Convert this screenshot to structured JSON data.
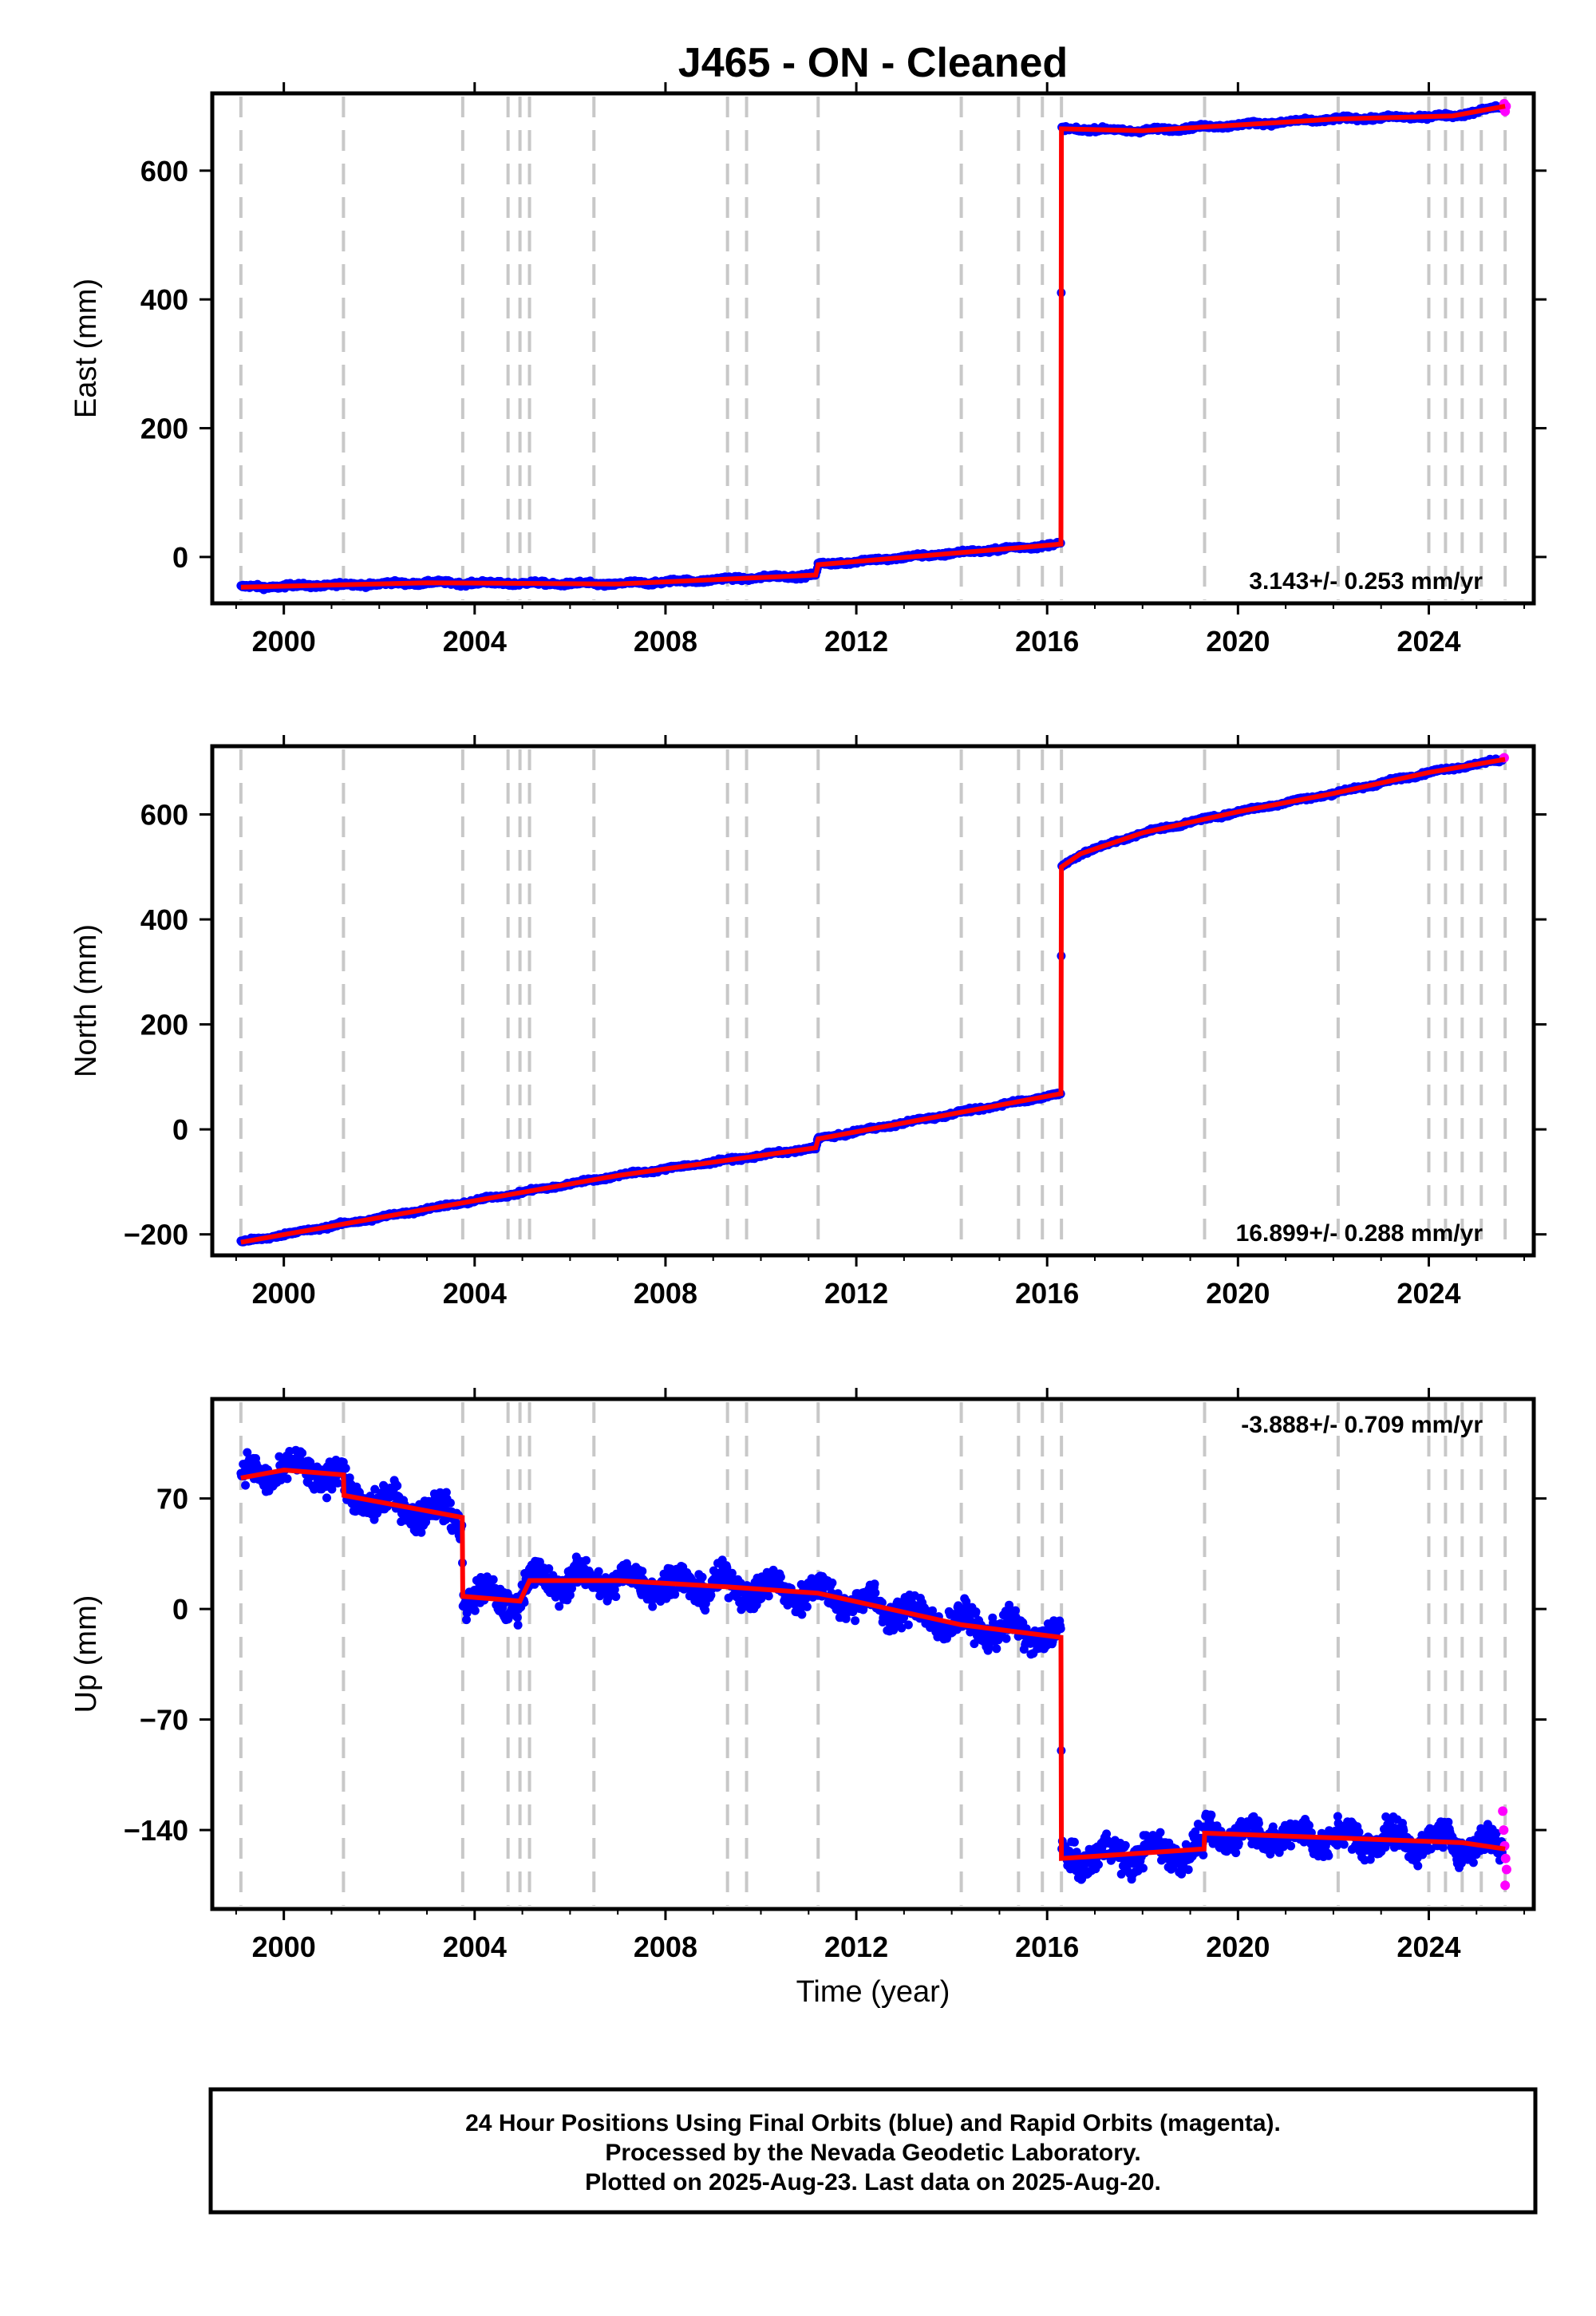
{
  "title": "J465  - ON - Cleaned",
  "footer": {
    "line1": "24 Hour Positions Using Final Orbits (blue) and Rapid Orbits (magenta).",
    "line2": "Processed by the Nevada Geodetic Laboratory.",
    "line3": "Plotted on 2025-Aug-23. Last data on 2025-Aug-20."
  },
  "colors": {
    "final_orbits": "#0000ff",
    "rapid_orbits": "#ff00ff",
    "model_fit": "#ff0000",
    "discontinuity_lines": "#c8c8c8"
  },
  "chart_data": [
    {
      "type": "scatter",
      "component": "east",
      "ylabel": "East (mm)",
      "xlabel": "",
      "xlim": [
        1998.5,
        2026.2
      ],
      "ylim": [
        -72,
        720
      ],
      "xticks": [
        2000,
        2004,
        2008,
        2012,
        2016,
        2020,
        2024
      ],
      "yticks": [
        0,
        200,
        400,
        600
      ],
      "ytick_labels": [
        "0",
        "200",
        "400",
        "600"
      ],
      "rate_label": "3.143+/- 0.253 mm/yr",
      "rate_position": "bottom-right",
      "noise": 4,
      "discontinuities": [
        1999.1,
        2001.25,
        2003.75,
        2004.7,
        2004.95,
        2005.15,
        2006.5,
        2009.3,
        2009.7,
        2011.2,
        2014.2,
        2015.4,
        2015.9,
        2016.3,
        2019.3,
        2022.1,
        2024.0,
        2024.35,
        2024.7,
        2025.1,
        2025.6
      ],
      "model_fit": [
        [
          1999.1,
          -47
        ],
        [
          2003.0,
          -40
        ],
        [
          2007.0,
          -42
        ],
        [
          2011.15,
          -28
        ],
        [
          2011.2,
          -12
        ],
        [
          2016.29,
          20
        ],
        [
          2016.3,
          665
        ],
        [
          2018.0,
          662
        ],
        [
          2022.0,
          680
        ],
        [
          2024.5,
          685
        ],
        [
          2025.6,
          700
        ]
      ],
      "rapid_points": [
        [
          2025.56,
          698
        ],
        [
          2025.58,
          704
        ],
        [
          2025.6,
          692
        ],
        [
          2025.62,
          700
        ]
      ]
    },
    {
      "type": "scatter",
      "component": "north",
      "ylabel": "North (mm)",
      "xlabel": "",
      "xlim": [
        1998.5,
        2026.2
      ],
      "ylim": [
        -240,
        730
      ],
      "xticks": [
        2000,
        2004,
        2008,
        2012,
        2016,
        2020,
        2024
      ],
      "yticks": [
        -200,
        0,
        200,
        400,
        600
      ],
      "ytick_labels": [
        "−200",
        "0",
        "200",
        "400",
        "600"
      ],
      "rate_label": "16.899+/- 0.288 mm/yr",
      "rate_position": "bottom-right",
      "noise": 4,
      "discontinuities": [
        1999.1,
        2001.25,
        2003.75,
        2004.7,
        2004.95,
        2005.15,
        2006.5,
        2009.3,
        2009.7,
        2011.2,
        2014.2,
        2015.4,
        2015.9,
        2016.3,
        2019.3,
        2022.1,
        2024.0,
        2024.35,
        2024.7,
        2025.1,
        2025.6
      ],
      "model_fit": [
        [
          1999.1,
          -215
        ],
        [
          2003.0,
          -152
        ],
        [
          2007.0,
          -88
        ],
        [
          2011.15,
          -35
        ],
        [
          2011.2,
          -18
        ],
        [
          2016.29,
          68
        ],
        [
          2016.3,
          500
        ],
        [
          2016.7,
          525
        ],
        [
          2018.0,
          565
        ],
        [
          2020.0,
          605
        ],
        [
          2022.0,
          640
        ],
        [
          2024.0,
          680
        ],
        [
          2025.6,
          705
        ]
      ],
      "rapid_points": [
        [
          2025.58,
          708
        ]
      ]
    },
    {
      "type": "scatter",
      "component": "up",
      "ylabel": "Up (mm)",
      "xlabel": "Time (year)",
      "xlim": [
        1998.5,
        2026.2
      ],
      "ylim": [
        -190,
        133
      ],
      "xticks": [
        2000,
        2004,
        2008,
        2012,
        2016,
        2020,
        2024
      ],
      "yticks": [
        -140,
        -70,
        0,
        70
      ],
      "ytick_labels": [
        "−140",
        "−70",
        "0",
        "70"
      ],
      "rate_label": "-3.888+/- 0.709 mm/yr",
      "rate_position": "top-right",
      "noise": 12,
      "discontinuities": [
        1999.1,
        2001.25,
        2003.75,
        2004.7,
        2004.95,
        2005.15,
        2006.5,
        2009.3,
        2009.7,
        2011.2,
        2014.2,
        2015.4,
        2015.9,
        2016.3,
        2019.3,
        2022.1,
        2024.0,
        2024.35,
        2024.7,
        2025.1,
        2025.6
      ],
      "model_fit": [
        [
          1999.1,
          83
        ],
        [
          2000.0,
          88
        ],
        [
          2001.25,
          85
        ],
        [
          2001.26,
          72
        ],
        [
          2003.74,
          58
        ],
        [
          2003.75,
          8
        ],
        [
          2004.95,
          5
        ],
        [
          2005.15,
          18
        ],
        [
          2007.0,
          18
        ],
        [
          2009.3,
          14
        ],
        [
          2011.2,
          10
        ],
        [
          2014.2,
          -10
        ],
        [
          2016.29,
          -18
        ],
        [
          2016.3,
          -158
        ],
        [
          2019.29,
          -152
        ],
        [
          2019.3,
          -142
        ],
        [
          2022.1,
          -145
        ],
        [
          2024.7,
          -148
        ],
        [
          2025.6,
          -152
        ]
      ],
      "rapid_points": [
        [
          2025.55,
          -128
        ],
        [
          2025.57,
          -140
        ],
        [
          2025.59,
          -150
        ],
        [
          2025.61,
          -158
        ],
        [
          2025.63,
          -165
        ],
        [
          2025.6,
          -175
        ]
      ]
    }
  ]
}
